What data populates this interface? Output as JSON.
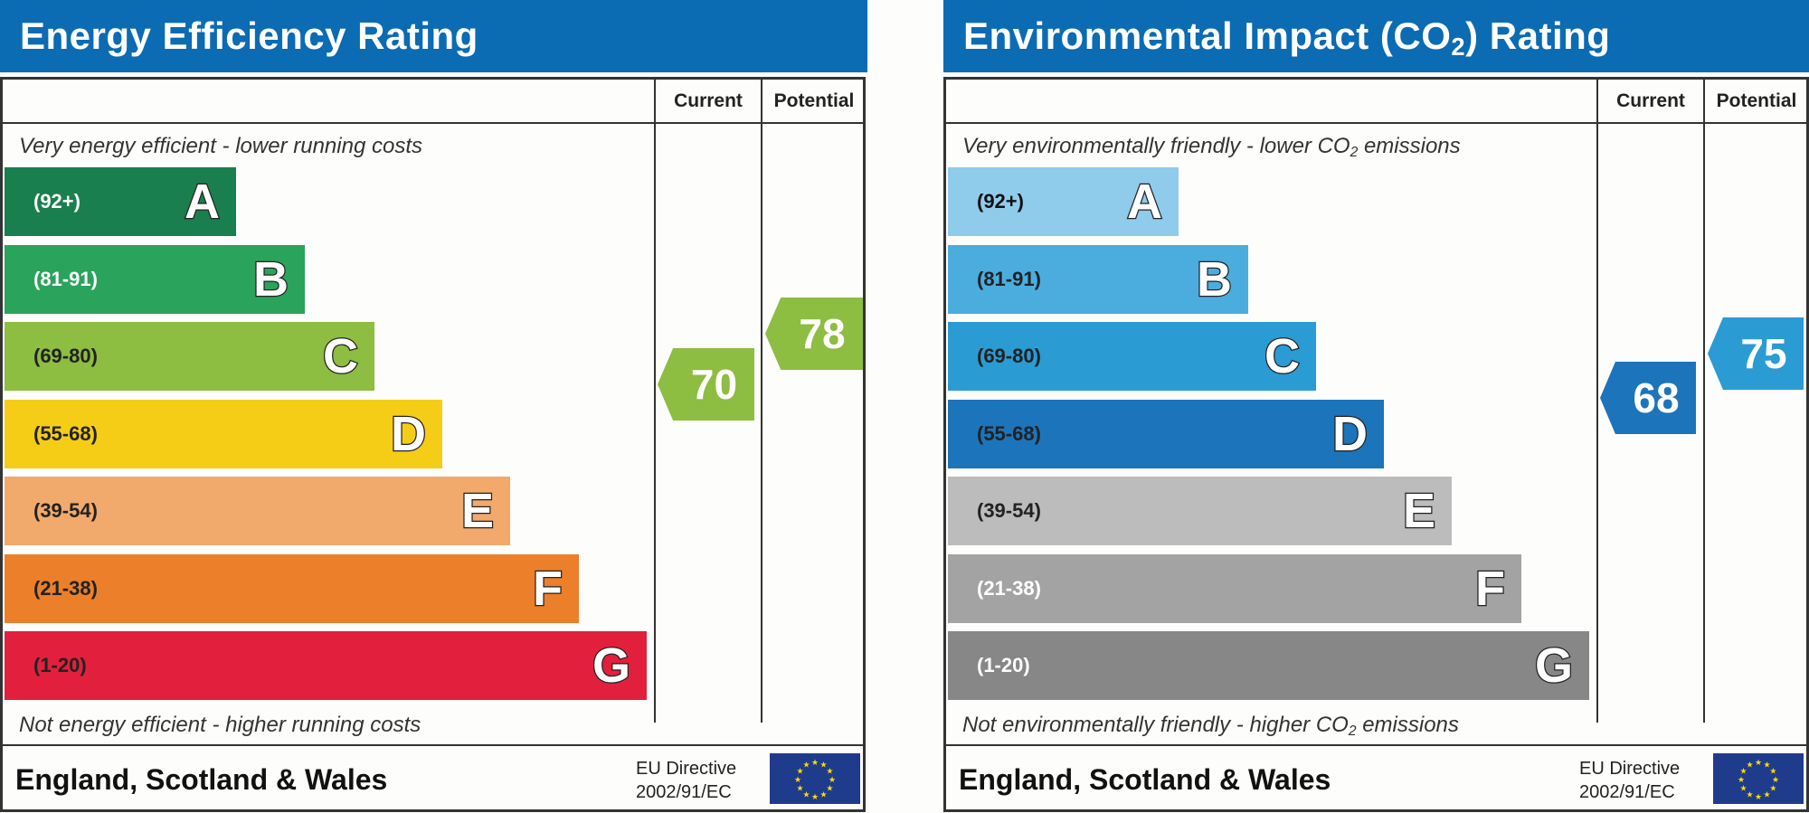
{
  "energy": {
    "title": "Energy Efficiency Rating",
    "col_current": "Current",
    "col_potential": "Potential",
    "top_caption": "Very energy efficient - lower running costs",
    "bottom_caption": "Not energy efficient - higher running costs",
    "bands": [
      {
        "range": "(92+)",
        "letter": "A",
        "color": "#1a7f4e",
        "text_color": "#ffffff"
      },
      {
        "range": "(81-91)",
        "letter": "B",
        "color": "#2aa35c",
        "text_color": "#ffffff"
      },
      {
        "range": "(69-80)",
        "letter": "C",
        "color": "#8dbd41",
        "text_color": "#222222"
      },
      {
        "range": "(55-68)",
        "letter": "D",
        "color": "#f5cd17",
        "text_color": "#222222"
      },
      {
        "range": "(39-54)",
        "letter": "E",
        "color": "#f2aa6c",
        "text_color": "#222222"
      },
      {
        "range": "(21-38)",
        "letter": "F",
        "color": "#ec7f2a",
        "text_color": "#222222"
      },
      {
        "range": "(1-20)",
        "letter": "G",
        "color": "#e2203d",
        "text_color": "#222222"
      }
    ],
    "current": {
      "value": "70",
      "color": "#8dbd41"
    },
    "potential": {
      "value": "78",
      "color": "#8dbd41"
    },
    "footer": "England, Scotland & Wales",
    "eu_line1": "EU Directive",
    "eu_line2": "2002/91/EC"
  },
  "environment": {
    "title_pre": "Environmental Impact (CO",
    "title_sub": "2",
    "title_post": ") Rating",
    "col_current": "Current",
    "col_potential": "Potential",
    "top_pre": "Very environmentally friendly - lower CO",
    "top_sub": "2",
    "top_post": " emissions",
    "bottom_pre": "Not environmentally friendly - higher CO",
    "bottom_sub": "2",
    "bottom_post": " emissions",
    "bands": [
      {
        "range": "(92+)",
        "letter": "A",
        "color": "#8fcbeb",
        "text_color": "#111111"
      },
      {
        "range": "(81-91)",
        "letter": "B",
        "color": "#4badde",
        "text_color": "#222222"
      },
      {
        "range": "(69-80)",
        "letter": "C",
        "color": "#2a9bd3",
        "text_color": "#222222"
      },
      {
        "range": "(55-68)",
        "letter": "D",
        "color": "#1c74bb",
        "text_color": "#222222"
      },
      {
        "range": "(39-54)",
        "letter": "E",
        "color": "#bcbcbc",
        "text_color": "#222222"
      },
      {
        "range": "(21-38)",
        "letter": "F",
        "color": "#a3a3a3",
        "text_color": "#ffffff"
      },
      {
        "range": "(1-20)",
        "letter": "G",
        "color": "#878787",
        "text_color": "#ffffff"
      }
    ],
    "current": {
      "value": "68",
      "color": "#1c74bb"
    },
    "potential": {
      "value": "75",
      "color": "#2a9bd3"
    },
    "footer": "England, Scotland & Wales",
    "eu_line1": "EU Directive",
    "eu_line2": "2002/91/EC"
  }
}
